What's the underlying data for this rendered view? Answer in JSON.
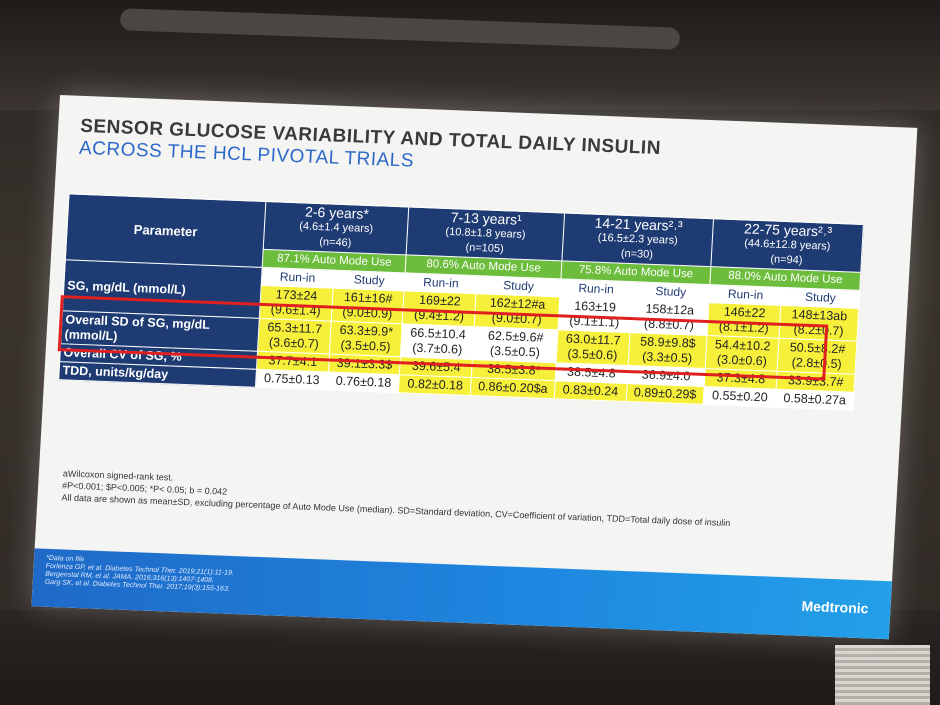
{
  "slide": {
    "title_line1": "SENSOR GLUCOSE VARIABILITY AND TOTAL DAILY INSULIN",
    "title_line2": "ACROSS THE HCL PIVOTAL TRIALS",
    "param_header": "Parameter",
    "groups": [
      {
        "age": "2-6 years*",
        "mean": "(4.6±1.4 years)",
        "n": "(n=46)",
        "auto": "87.1% Auto Mode Use"
      },
      {
        "age": "7-13 years¹",
        "mean": "(10.8±1.8 years)",
        "n": "(n=105)",
        "auto": "80.6% Auto Mode Use"
      },
      {
        "age": "14-21 years²˒³",
        "mean": "(16.5±2.3 years)",
        "n": "(n=30)",
        "auto": "75.8% Auto Mode Use"
      },
      {
        "age": "22-75 years²˒³",
        "mean": "(44.6±12.8 years)",
        "n": "(n=94)",
        "auto": "88.0% Auto Mode Use"
      }
    ],
    "runin": "Run-in",
    "study": "Study",
    "rows": [
      {
        "label": "SG, mg/dL (mmol/L)",
        "cells": [
          "173±24 (9.6±1.4)",
          "161±16# (9.0±0.9)",
          "169±22 (9.4±1.2)",
          "162±12#a (9.0±0.7)",
          "163±19 (9.1±1.1)",
          "158±12a (8.8±0.7)",
          "146±22 (8.1±1.2)",
          "148±13ab (8.2±0.7)"
        ]
      },
      {
        "label": "Overall SD of SG, mg/dL (mmol/L)",
        "cells": [
          "65.3±11.7 (3.6±0.7)",
          "63.3±9.9* (3.5±0.5)",
          "66.5±10.4 (3.7±0.6)",
          "62.5±9.6# (3.5±0.5)",
          "63.0±11.7 (3.5±0.6)",
          "58.9±9.8$ (3.3±0.5)",
          "54.4±10.2 (3.0±0.6)",
          "50.5±8.2# (2.8±0.5)"
        ]
      },
      {
        "label": "Overall CV of SG, %",
        "cells": [
          "37.7±4.1",
          "39.1±3.3$",
          "39.6±5.4",
          "38.5±3.8*",
          "38.5±4.8",
          "36.9±4.0",
          "37.3±4.8",
          "33.9±3.7#"
        ]
      },
      {
        "label": "TDD, units/kg/day",
        "cells": [
          "0.75±0.13",
          "0.76±0.18",
          "0.82±0.18",
          "0.86±0.20$a",
          "0.83±0.24",
          "0.89±0.29$",
          "0.55±0.20",
          "0.58±0.27a"
        ]
      }
    ],
    "footnotes": [
      "aWilcoxon signed-rank test.",
      "#P<0.001; $P<0.005; *P< 0.05; b = 0.042",
      "All data are shown as mean±SD, excluding percentage of Auto Mode Use (median). SD=Standard deviation, CV=Coefficient of variation, TDD=Total daily dose of insulin"
    ],
    "references": [
      "*Data on file",
      "Forlenza GP, et al. Diabetes Technol Ther. 2019;21(1):11-19.",
      "Bergenstal RM, et al. JAMA. 2016;316(13):1407-1408.",
      "Garg SK, et al. Diabetes Technol Ther. 2017;19(3):155-163."
    ],
    "brand": "Medtronic"
  }
}
